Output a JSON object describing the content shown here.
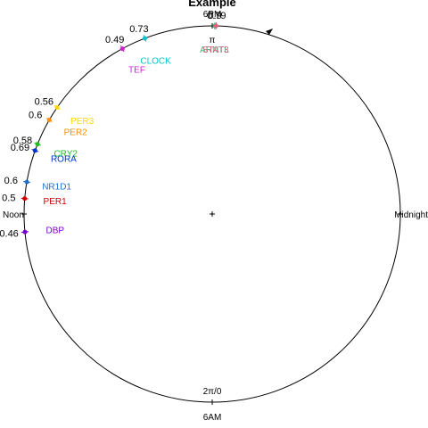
{
  "chart_data": {
    "type": "scatter",
    "coordinate_system": "polar-clock",
    "title": "Example",
    "axis_labels": {
      "top": "6PM",
      "top_radian": "π",
      "bottom": "6AM",
      "bottom_radian": "2π/0",
      "left": "Noon",
      "right": "Midnight"
    },
    "direction": "clockwise",
    "points": [
      {
        "name": "ARNTL",
        "angle_deg": 89.2,
        "amplitude": "0.9",
        "color": "#3cb371"
      },
      {
        "name": "STAT3",
        "angle_deg": 88.8,
        "amplitude": "0.79",
        "color": "#e06080"
      },
      {
        "name": "CLOCK",
        "angle_deg": 111,
        "amplitude": "0.73",
        "color": "#00c8c8"
      },
      {
        "name": "TEF",
        "angle_deg": 118.5,
        "amplitude": "0.49",
        "color": "#d020d0"
      },
      {
        "name": "PER3",
        "angle_deg": 145.5,
        "amplitude": "0.56",
        "color": "#ffd700"
      },
      {
        "name": "PER2",
        "angle_deg": 150,
        "amplitude": "0.6",
        "color": "#ff8c00"
      },
      {
        "name": "CRY2",
        "angle_deg": 158.2,
        "amplitude": "0.58",
        "color": "#22bb22"
      },
      {
        "name": "RORA",
        "angle_deg": 160.3,
        "amplitude": "0.69",
        "color": "#0033cc"
      },
      {
        "name": "NR1D1",
        "angle_deg": 170.2,
        "amplitude": "0.6",
        "color": "#1f6fd0"
      },
      {
        "name": "PER1",
        "angle_deg": 175.3,
        "amplitude": "0.5",
        "color": "#cc0000"
      },
      {
        "name": "DBP",
        "angle_deg": 185.5,
        "amplitude": "0.46",
        "color": "#7700cc"
      }
    ]
  }
}
